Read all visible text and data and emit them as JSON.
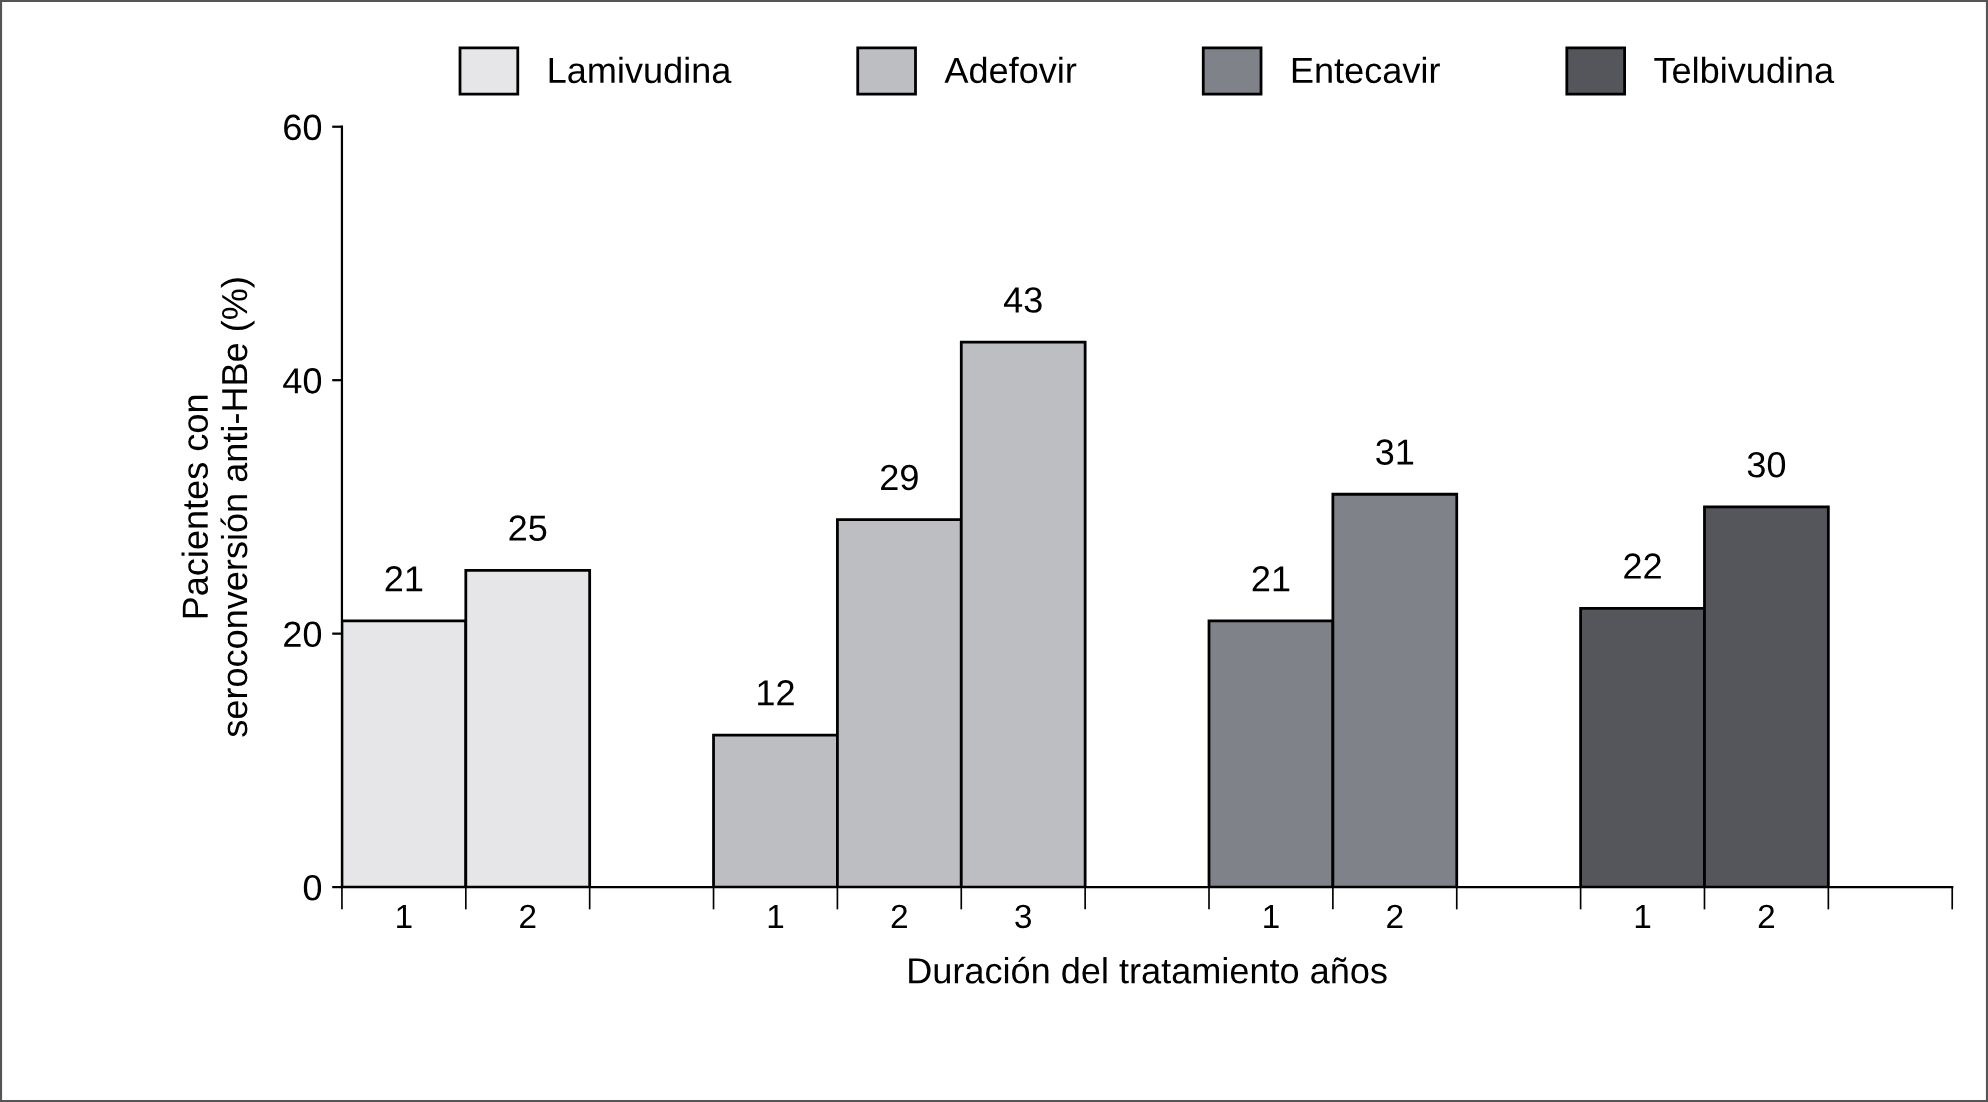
{
  "chart_data": {
    "type": "bar",
    "xlabel": "Duración del tratamiento años",
    "ylabel": "Pacientes con\nseroconversión anti-HBe (%)",
    "categories": [
      "1",
      "2",
      null,
      "1",
      "2",
      "3",
      null,
      "1",
      "2",
      null,
      "1",
      "2",
      null
    ],
    "series": [
      {
        "name": "Lamivudina",
        "color": "#e6e6e8",
        "values": [
          21,
          25,
          null,
          null,
          null,
          null,
          null,
          null,
          null,
          null,
          null,
          null,
          null
        ]
      },
      {
        "name": "Adefovir",
        "color": "#bcbec2",
        "values": [
          null,
          null,
          null,
          12,
          29,
          43,
          null,
          null,
          null,
          null,
          null,
          null,
          null
        ]
      },
      {
        "name": "Entecavir",
        "color": "#808289",
        "values": [
          null,
          null,
          null,
          null,
          null,
          null,
          null,
          21,
          31,
          null,
          null,
          null,
          null
        ]
      },
      {
        "name": "Telbivudina",
        "color": "#55565b",
        "values": [
          null,
          null,
          null,
          null,
          null,
          null,
          null,
          null,
          null,
          null,
          22,
          30,
          null
        ]
      }
    ],
    "ylim": [
      0,
      60
    ],
    "yticks": [
      0,
      20,
      40,
      60
    ],
    "data_labels": true,
    "grid": false,
    "legend": "top"
  }
}
